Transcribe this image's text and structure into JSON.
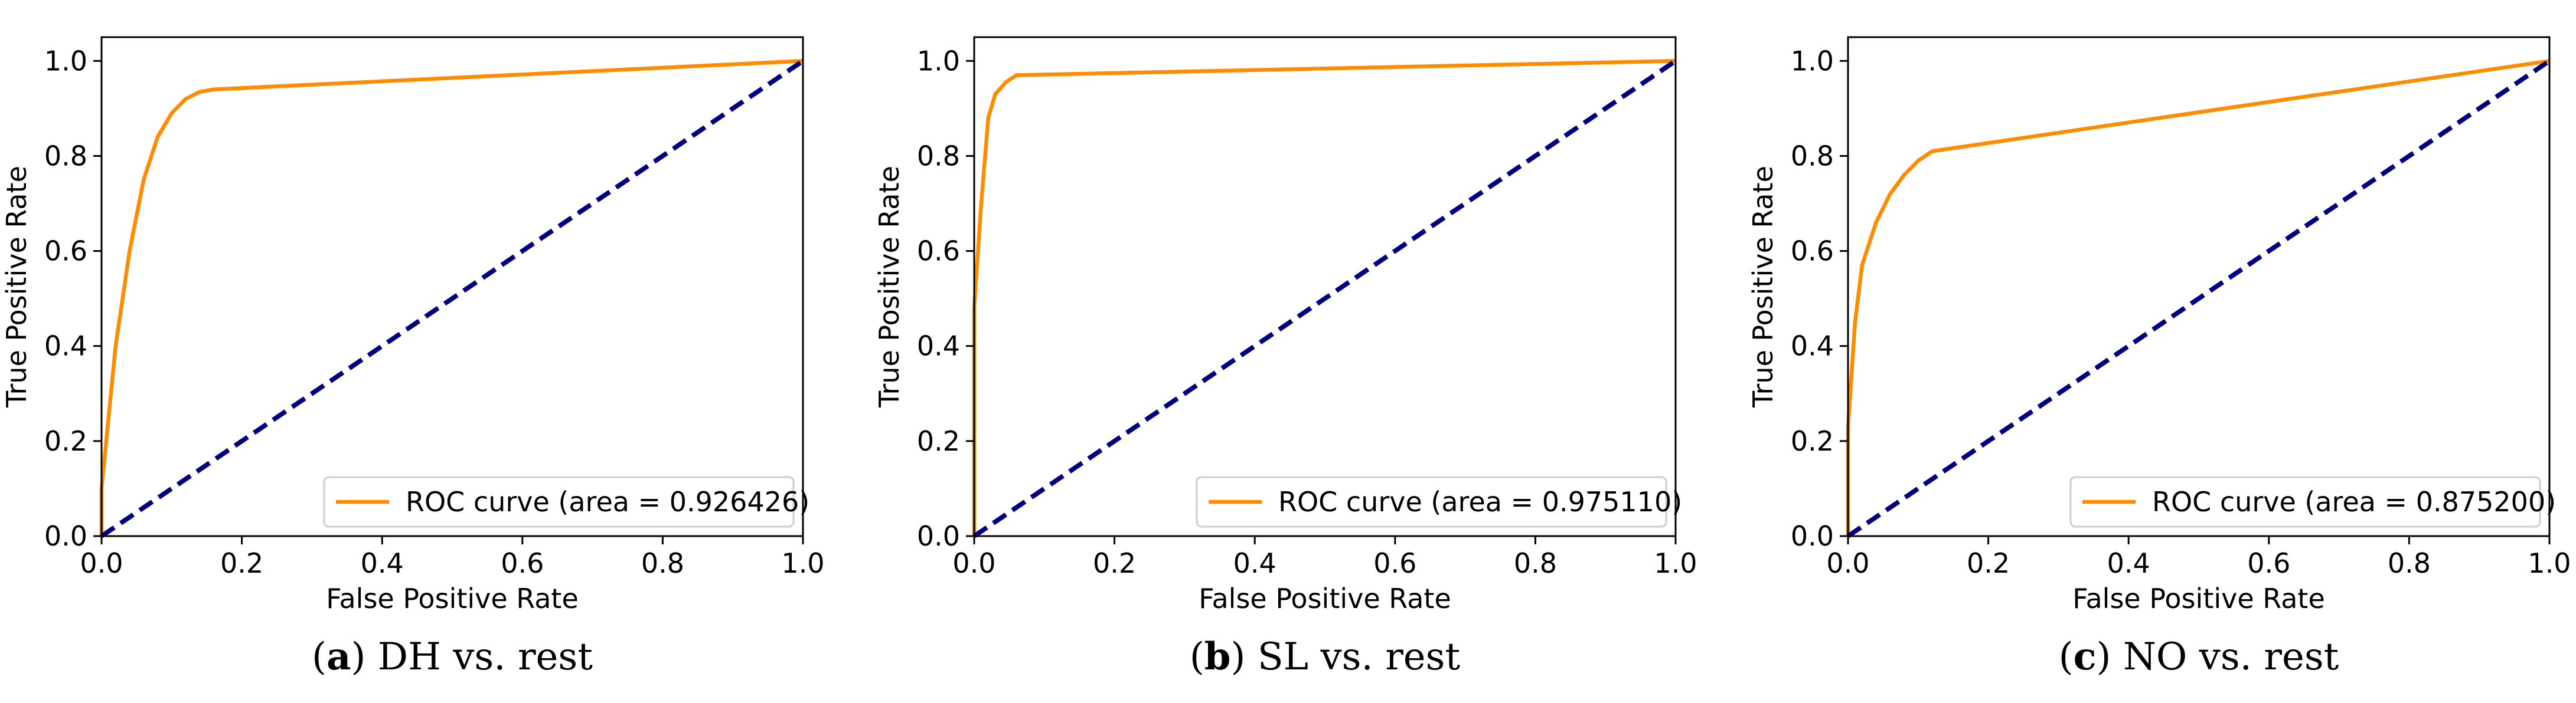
{
  "colors": {
    "roc_line": "#ff8c00",
    "chance_line": "#000080",
    "axes": "#000000",
    "background": "#ffffff"
  },
  "chart_data": [
    {
      "type": "line",
      "caption_letter": "a",
      "caption_text": "DH vs. rest",
      "xlabel": "False Positive Rate",
      "ylabel": "True Positive Rate",
      "xlim": [
        0.0,
        1.0
      ],
      "ylim": [
        0.0,
        1.05
      ],
      "xticks": [
        "0.0",
        "0.2",
        "0.4",
        "0.6",
        "0.8",
        "1.0"
      ],
      "yticks": [
        "0.0",
        "0.2",
        "0.4",
        "0.6",
        "0.8",
        "1.0"
      ],
      "legend_position": "lower right",
      "series": [
        {
          "name": "ROC curve (area = 0.926426)",
          "style": "solid",
          "x": [
            0.0,
            0.0,
            0.02,
            0.04,
            0.06,
            0.08,
            0.1,
            0.12,
            0.14,
            0.16,
            1.0
          ],
          "y": [
            0.0,
            0.1,
            0.4,
            0.6,
            0.75,
            0.84,
            0.89,
            0.92,
            0.935,
            0.94,
            1.0
          ]
        },
        {
          "name": "chance",
          "style": "dashed",
          "x": [
            0.0,
            1.0
          ],
          "y": [
            0.0,
            1.0
          ]
        }
      ]
    },
    {
      "type": "line",
      "caption_letter": "b",
      "caption_text": "SL vs. rest",
      "xlabel": "False Positive Rate",
      "ylabel": "True Positive Rate",
      "xlim": [
        0.0,
        1.0
      ],
      "ylim": [
        0.0,
        1.05
      ],
      "xticks": [
        "0.0",
        "0.2",
        "0.4",
        "0.6",
        "0.8",
        "1.0"
      ],
      "yticks": [
        "0.0",
        "0.2",
        "0.4",
        "0.6",
        "0.8",
        "1.0"
      ],
      "legend_position": "lower right",
      "series": [
        {
          "name": "ROC curve (area = 0.975110)",
          "style": "solid",
          "x": [
            0.0,
            0.0,
            0.01,
            0.02,
            0.03,
            0.045,
            0.06,
            1.0
          ],
          "y": [
            0.0,
            0.48,
            0.7,
            0.88,
            0.93,
            0.955,
            0.97,
            1.0
          ]
        },
        {
          "name": "chance",
          "style": "dashed",
          "x": [
            0.0,
            1.0
          ],
          "y": [
            0.0,
            1.0
          ]
        }
      ]
    },
    {
      "type": "line",
      "caption_letter": "c",
      "caption_text": "NO vs. rest",
      "xlabel": "False Positive Rate",
      "ylabel": "True Positive Rate",
      "xlim": [
        0.0,
        1.0
      ],
      "ylim": [
        0.0,
        1.05
      ],
      "xticks": [
        "0.0",
        "0.2",
        "0.4",
        "0.6",
        "0.8",
        "1.0"
      ],
      "yticks": [
        "0.0",
        "0.2",
        "0.4",
        "0.6",
        "0.8",
        "1.0"
      ],
      "legend_position": "lower right",
      "series": [
        {
          "name": "ROC curve (area = 0.875200)",
          "style": "solid",
          "x": [
            0.0,
            0.0,
            0.01,
            0.02,
            0.04,
            0.06,
            0.08,
            0.1,
            0.12,
            1.0
          ],
          "y": [
            0.0,
            0.23,
            0.45,
            0.57,
            0.66,
            0.72,
            0.76,
            0.79,
            0.81,
            1.0
          ]
        },
        {
          "name": "chance",
          "style": "dashed",
          "x": [
            0.0,
            1.0
          ],
          "y": [
            0.0,
            1.0
          ]
        }
      ]
    }
  ]
}
